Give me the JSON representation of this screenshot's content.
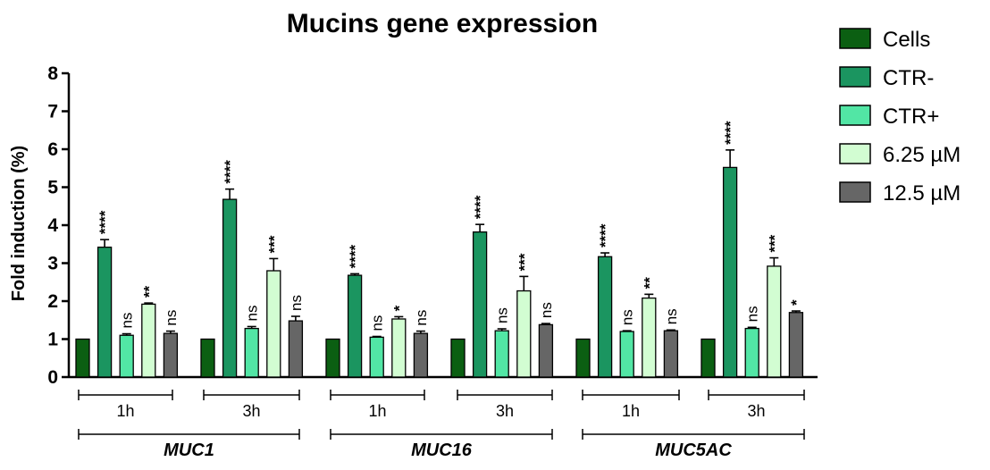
{
  "chart_data": {
    "type": "bar",
    "title": "Mucins gene expression",
    "ylabel": "Fold induction (%)",
    "xlabel": "",
    "ylim": [
      0,
      8
    ],
    "yticks": [
      "0",
      "1",
      "2",
      "3",
      "4",
      "5",
      "6",
      "7",
      "8"
    ],
    "grid": false,
    "legend_position": "right",
    "series": [
      {
        "name": "Cells",
        "color": "#0b5f12"
      },
      {
        "name": "CTR-",
        "color": "#1b9560"
      },
      {
        "name": "CTR+",
        "color": "#52e6a5"
      },
      {
        "name": "6.25 µM",
        "color": "#d2fdd2"
      },
      {
        "name": "12.5 µM",
        "color": "#666666"
      }
    ],
    "groups": [
      {
        "gene": "MUC1",
        "time": "1h",
        "values": [
          1.0,
          3.42,
          1.1,
          1.92,
          1.15
        ],
        "errors": [
          0,
          0.2,
          0.04,
          0.03,
          0.06
        ],
        "significance": [
          "",
          "****",
          "ns",
          "**",
          "ns"
        ]
      },
      {
        "gene": "MUC1",
        "time": "3h",
        "values": [
          1.0,
          4.68,
          1.28,
          2.8,
          1.48
        ],
        "errors": [
          0,
          0.27,
          0.05,
          0.32,
          0.12
        ],
        "significance": [
          "",
          "****",
          "ns",
          "***",
          "ns"
        ]
      },
      {
        "gene": "MUC16",
        "time": "1h",
        "values": [
          1.0,
          2.68,
          1.05,
          1.53,
          1.15
        ],
        "errors": [
          0,
          0.04,
          0.02,
          0.06,
          0.06
        ],
        "significance": [
          "",
          "****",
          "ns",
          "*",
          "ns"
        ]
      },
      {
        "gene": "MUC16",
        "time": "3h",
        "values": [
          1.0,
          3.82,
          1.22,
          2.27,
          1.38
        ],
        "errors": [
          0,
          0.2,
          0.05,
          0.38,
          0.03
        ],
        "significance": [
          "",
          "****",
          "ns",
          "***",
          "ns"
        ]
      },
      {
        "gene": "MUC5AC",
        "time": "1h",
        "values": [
          1.0,
          3.17,
          1.2,
          2.08,
          1.22
        ],
        "errors": [
          0,
          0.1,
          0.02,
          0.1,
          0.02
        ],
        "significance": [
          "",
          "****",
          "ns",
          "**",
          "ns"
        ]
      },
      {
        "gene": "MUC5AC",
        "time": "3h",
        "values": [
          1.0,
          5.52,
          1.28,
          2.92,
          1.7
        ],
        "errors": [
          0,
          0.46,
          0.03,
          0.22,
          0.04
        ],
        "significance": [
          "",
          "****",
          "ns",
          "***",
          "*"
        ]
      }
    ],
    "genes": [
      "MUC1",
      "MUC16",
      "MUC5AC"
    ]
  }
}
